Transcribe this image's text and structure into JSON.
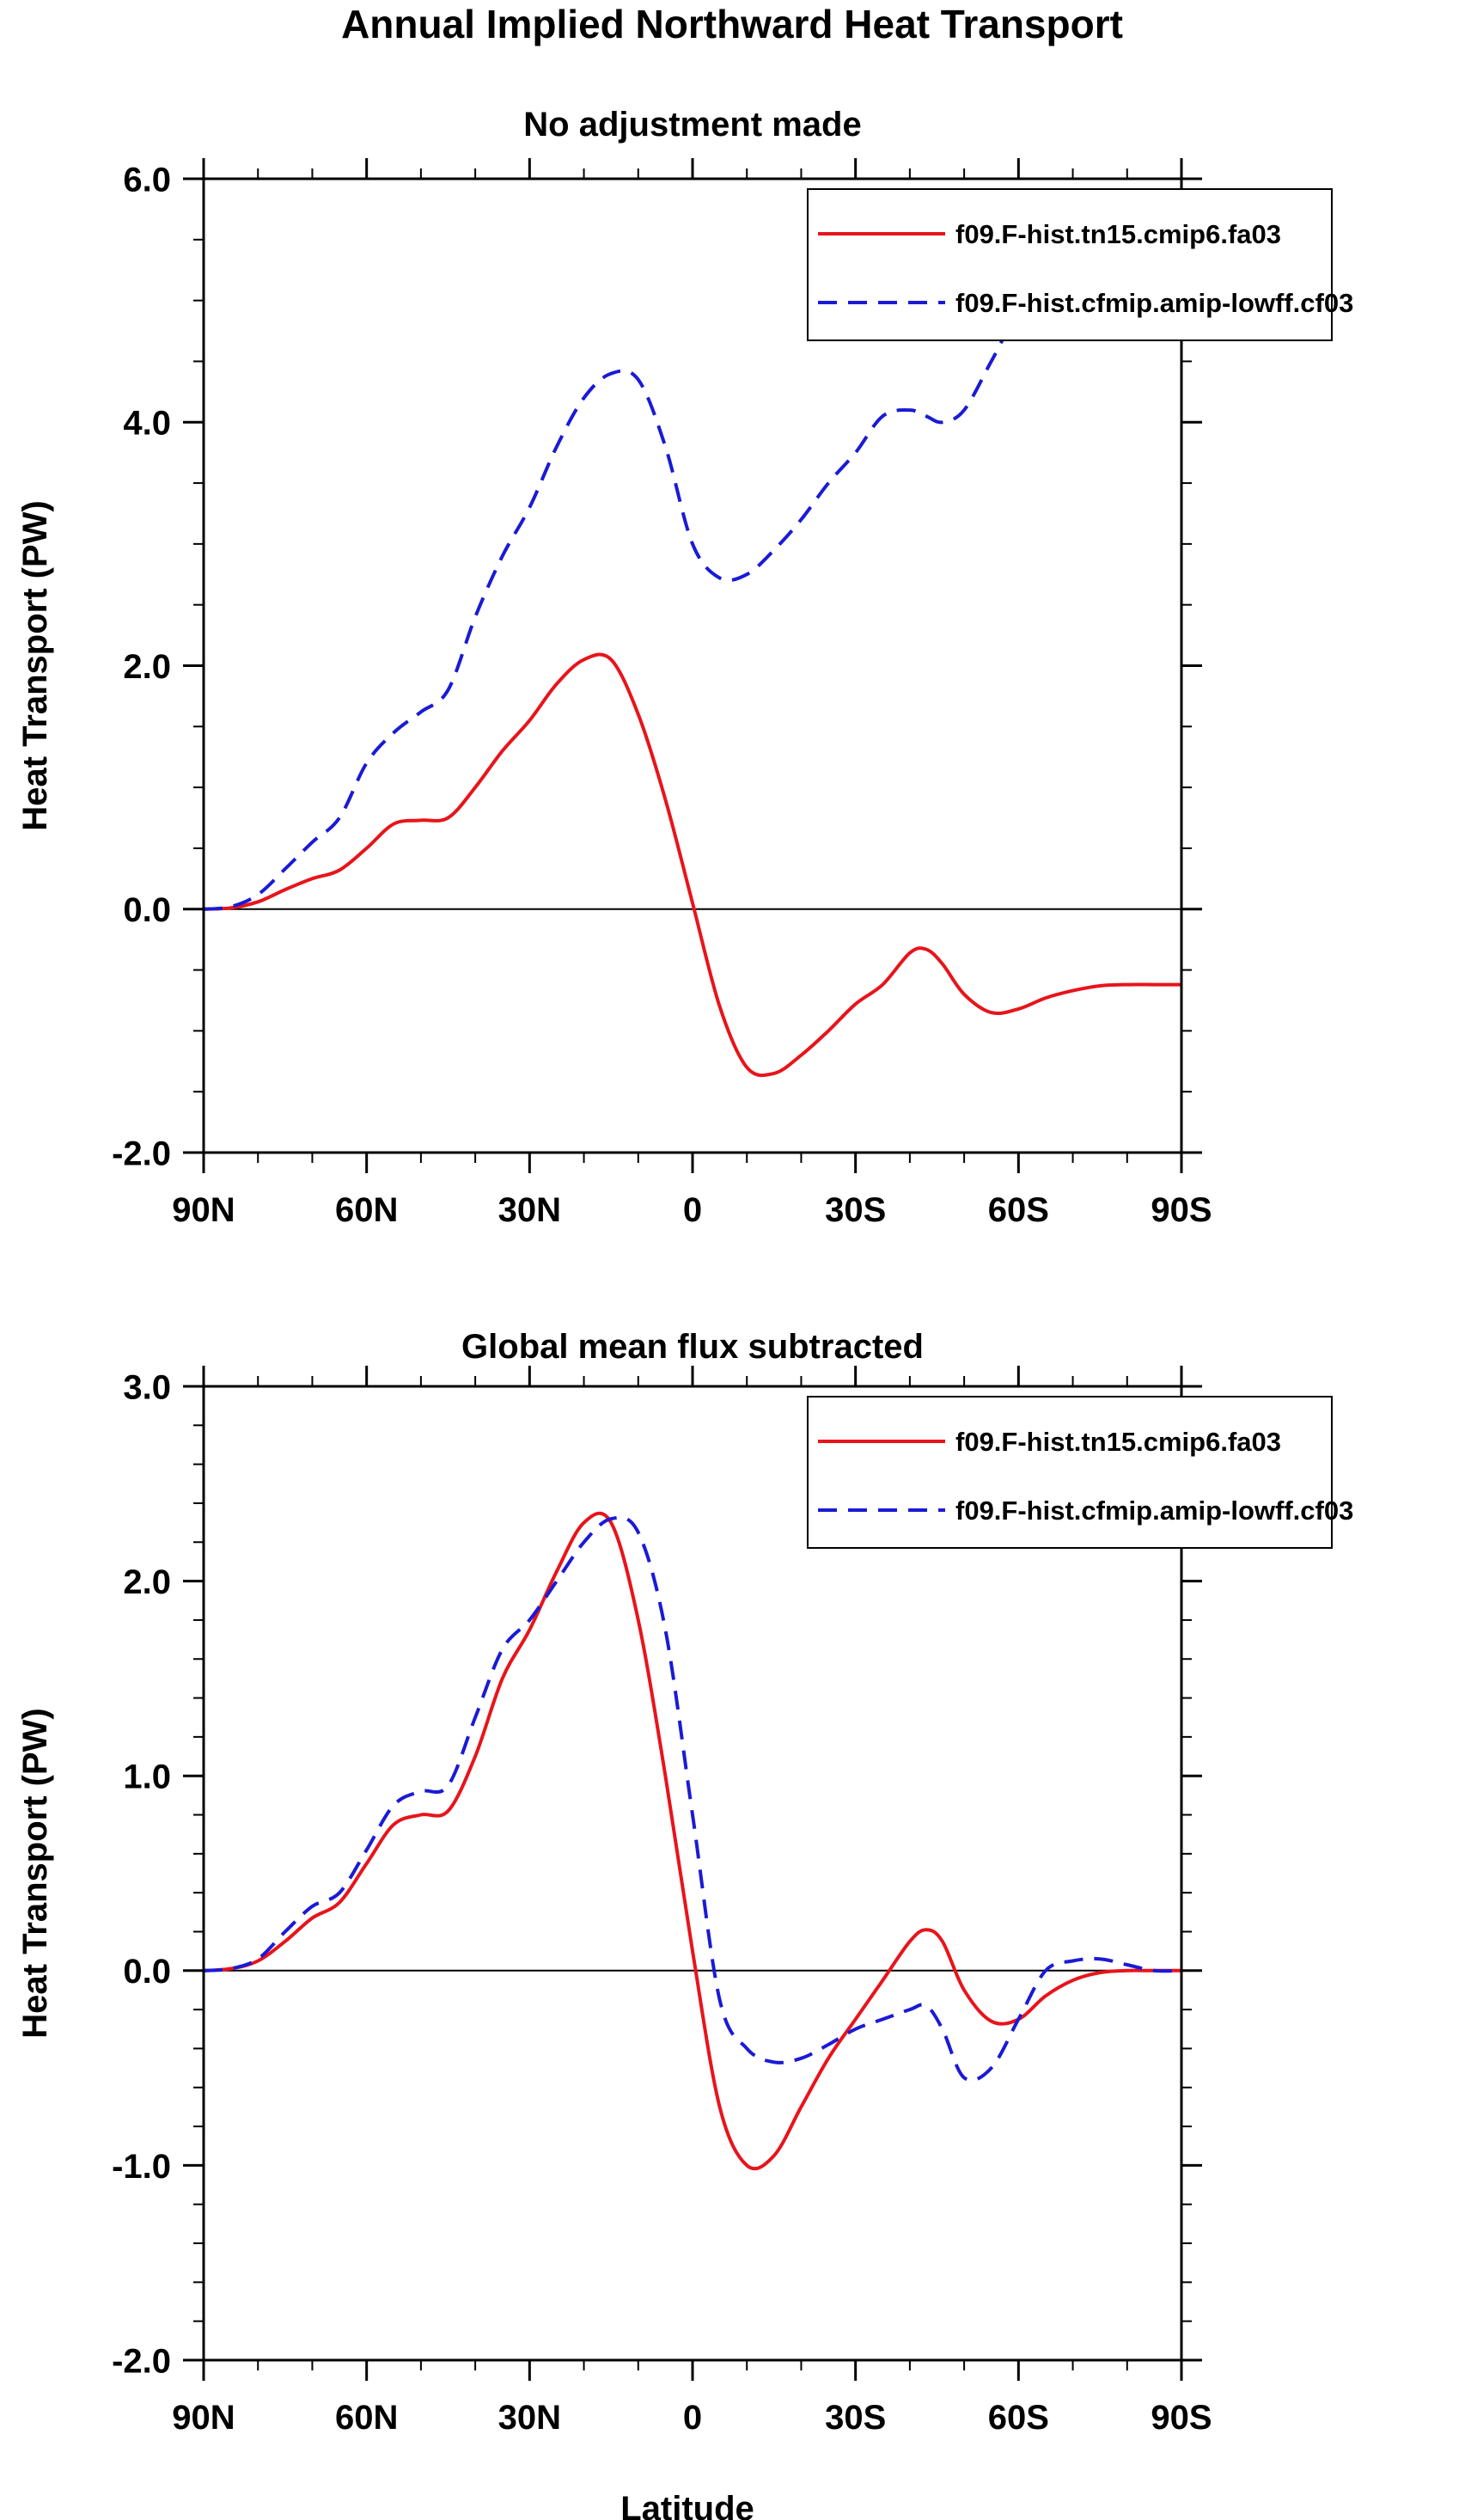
{
  "figure": {
    "title": "Annual Implied Northward Heat Transport",
    "xlabel": "Latitude"
  },
  "colors": {
    "series_1": "#e8141b",
    "series_2": "#1a1ad6",
    "axis": "#000000"
  },
  "chart_data": [
    {
      "type": "line",
      "title": "No adjustment made",
      "xlabel": "",
      "ylabel": "Heat Transport (PW)",
      "x_direction": "north-to-south (latitude, 90N to 90S)",
      "xlim": [
        90,
        -90
      ],
      "ylim": [
        -2.0,
        6.0
      ],
      "y_major_ticks": [
        -2.0,
        0.0,
        2.0,
        4.0,
        6.0
      ],
      "y_tick_labels": [
        "-2.0",
        "0.0",
        "2.0",
        "4.0",
        "6.0"
      ],
      "y_minor_step": 0.5,
      "x_major_ticks": [
        90,
        60,
        30,
        0,
        -30,
        -60,
        -90
      ],
      "x_tick_labels": [
        "90N",
        "60N",
        "30N",
        "0",
        "30S",
        "60S",
        "90S"
      ],
      "x_minor_step": 10,
      "zero_line": true,
      "grid": false,
      "legend": "top-right",
      "series": [
        {
          "name": "f09.F-hist.tn15.cmip6.fa03",
          "style": "solid",
          "color": "#e8141b",
          "x": [
            90,
            85,
            80,
            75,
            70,
            65,
            60,
            55,
            50,
            45,
            40,
            35,
            30,
            25,
            20,
            15,
            10,
            5,
            0,
            -5,
            -10,
            -15,
            -20,
            -25,
            -30,
            -35,
            -40,
            -43,
            -46,
            -50,
            -55,
            -60,
            -65,
            -70,
            -75,
            -80,
            -85,
            -90
          ],
          "y": [
            0.0,
            0.01,
            0.06,
            0.16,
            0.25,
            0.32,
            0.5,
            0.7,
            0.73,
            0.75,
            1.0,
            1.3,
            1.55,
            1.85,
            2.05,
            2.05,
            1.6,
            0.9,
            0.05,
            -0.8,
            -1.3,
            -1.35,
            -1.2,
            -1.0,
            -0.78,
            -0.62,
            -0.36,
            -0.33,
            -0.45,
            -0.7,
            -0.85,
            -0.82,
            -0.73,
            -0.67,
            -0.63,
            -0.62,
            -0.62,
            -0.62
          ]
        },
        {
          "name": "f09.F-hist.cfmip.amip-lowff.cf03",
          "style": "dashed",
          "color": "#1a1ad6",
          "x": [
            90,
            85,
            80,
            75,
            70,
            65,
            60,
            55,
            50,
            45,
            40,
            35,
            30,
            25,
            20,
            15,
            10,
            5,
            0,
            -5,
            -10,
            -15,
            -20,
            -25,
            -30,
            -35,
            -40,
            -43,
            -46,
            -50,
            -55,
            -60,
            -65,
            -70,
            -75,
            -80,
            -85,
            -90
          ],
          "y": [
            0.0,
            0.02,
            0.12,
            0.33,
            0.55,
            0.75,
            1.2,
            1.45,
            1.62,
            1.8,
            2.4,
            2.9,
            3.3,
            3.8,
            4.2,
            4.4,
            4.35,
            3.8,
            3.0,
            2.72,
            2.75,
            2.95,
            3.2,
            3.5,
            3.75,
            4.05,
            4.1,
            4.05,
            4.0,
            4.1,
            4.5,
            4.9,
            5.05,
            5.1,
            5.12,
            5.12,
            5.12,
            5.12
          ]
        }
      ]
    },
    {
      "type": "line",
      "title": "Global mean flux subtracted",
      "xlabel": "Latitude",
      "ylabel": "Heat Transport (PW)",
      "x_direction": "north-to-south (latitude, 90N to 90S)",
      "xlim": [
        90,
        -90
      ],
      "ylim": [
        -2.0,
        3.0
      ],
      "y_major_ticks": [
        -2.0,
        -1.0,
        0.0,
        1.0,
        2.0,
        3.0
      ],
      "y_tick_labels": [
        "-2.0",
        "-1.0",
        "0.0",
        "1.0",
        "2.0",
        "3.0"
      ],
      "y_minor_step": 0.2,
      "x_major_ticks": [
        90,
        60,
        30,
        0,
        -30,
        -60,
        -90
      ],
      "x_tick_labels": [
        "90N",
        "60N",
        "30N",
        "0",
        "30S",
        "60S",
        "90S"
      ],
      "x_minor_step": 10,
      "zero_line": true,
      "grid": false,
      "legend": "top-right",
      "series": [
        {
          "name": "f09.F-hist.tn15.cmip6.fa03",
          "style": "solid",
          "color": "#e8141b",
          "x": [
            90,
            85,
            80,
            75,
            70,
            65,
            60,
            55,
            50,
            45,
            40,
            35,
            30,
            25,
            20,
            15,
            10,
            5,
            0,
            -5,
            -10,
            -15,
            -20,
            -25,
            -30,
            -35,
            -40,
            -43,
            -46,
            -50,
            -55,
            -60,
            -65,
            -70,
            -75,
            -80,
            -85,
            -90
          ],
          "y": [
            0.0,
            0.01,
            0.05,
            0.15,
            0.27,
            0.35,
            0.55,
            0.75,
            0.8,
            0.82,
            1.1,
            1.5,
            1.75,
            2.05,
            2.3,
            2.3,
            1.8,
            1.0,
            0.1,
            -0.7,
            -1.0,
            -0.95,
            -0.7,
            -0.45,
            -0.25,
            -0.05,
            0.15,
            0.21,
            0.15,
            -0.1,
            -0.26,
            -0.25,
            -0.13,
            -0.05,
            -0.01,
            0.0,
            0.0,
            0.0
          ]
        },
        {
          "name": "f09.F-hist.cfmip.amip-lowff.cf03",
          "style": "dashed",
          "color": "#1a1ad6",
          "x": [
            90,
            85,
            80,
            75,
            70,
            65,
            60,
            55,
            50,
            45,
            40,
            35,
            30,
            25,
            20,
            15,
            10,
            5,
            0,
            -5,
            -10,
            -15,
            -20,
            -25,
            -30,
            -35,
            -40,
            -43,
            -46,
            -50,
            -55,
            -60,
            -65,
            -70,
            -75,
            -80,
            -85,
            -90
          ],
          "y": [
            0.0,
            0.01,
            0.06,
            0.2,
            0.33,
            0.4,
            0.62,
            0.85,
            0.92,
            0.95,
            1.3,
            1.65,
            1.8,
            2.0,
            2.2,
            2.32,
            2.25,
            1.75,
            0.8,
            -0.15,
            -0.4,
            -0.47,
            -0.45,
            -0.38,
            -0.3,
            -0.25,
            -0.2,
            -0.18,
            -0.3,
            -0.55,
            -0.5,
            -0.25,
            0.0,
            0.05,
            0.06,
            0.03,
            0.0,
            0.0
          ]
        }
      ]
    }
  ]
}
